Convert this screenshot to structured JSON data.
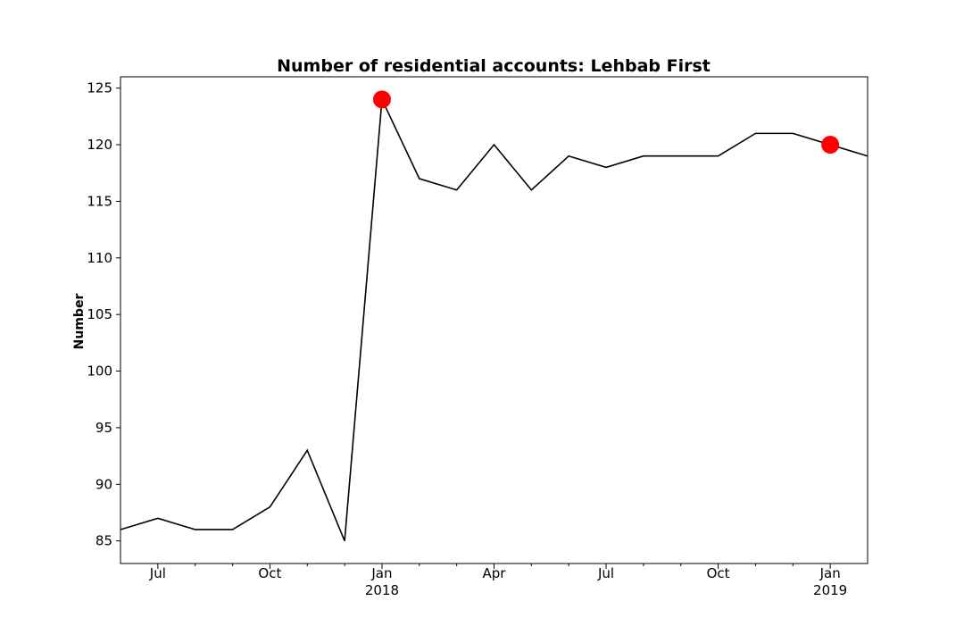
{
  "chart_data": {
    "type": "line",
    "title": "Number of residential accounts: Lehbab First",
    "xlabel": "",
    "ylabel": "Number",
    "x": [
      "2017-06",
      "2017-07",
      "2017-08",
      "2017-09",
      "2017-10",
      "2017-11",
      "2017-12",
      "2018-01",
      "2018-02",
      "2018-03",
      "2018-04",
      "2018-05",
      "2018-06",
      "2018-07",
      "2018-08",
      "2018-09",
      "2018-10",
      "2018-11",
      "2018-12",
      "2019-01",
      "2019-02"
    ],
    "series": [
      {
        "values": [
          86,
          87,
          86,
          86,
          88,
          93,
          85,
          124,
          117,
          116,
          120,
          116,
          119,
          118,
          119,
          119,
          119,
          121,
          121,
          120,
          119
        ],
        "color": "#000000"
      }
    ],
    "highlighted_points": [
      {
        "x": "2018-01",
        "y": 124,
        "color": "#ff0000"
      },
      {
        "x": "2019-01",
        "y": 120,
        "color": "#ff0000"
      }
    ],
    "ylim": [
      83,
      126
    ],
    "y_ticks": [
      85,
      90,
      95,
      100,
      105,
      110,
      115,
      120,
      125
    ],
    "x_major_ticks": [
      {
        "x": "2017-07",
        "label": "Jul",
        "sublabel": ""
      },
      {
        "x": "2017-10",
        "label": "Oct",
        "sublabel": ""
      },
      {
        "x": "2018-01",
        "label": "Jan",
        "sublabel": "2018"
      },
      {
        "x": "2018-04",
        "label": "Apr",
        "sublabel": ""
      },
      {
        "x": "2018-07",
        "label": "Jul",
        "sublabel": ""
      },
      {
        "x": "2018-10",
        "label": "Oct",
        "sublabel": ""
      },
      {
        "x": "2019-01",
        "label": "Jan",
        "sublabel": "2019"
      }
    ],
    "x_minor_ticks": [
      "2017-08",
      "2017-09",
      "2017-11",
      "2017-12",
      "2018-02",
      "2018-03",
      "2018-05",
      "2018-06",
      "2018-08",
      "2018-09",
      "2018-11",
      "2018-12"
    ],
    "grid": false,
    "legend": "none"
  }
}
